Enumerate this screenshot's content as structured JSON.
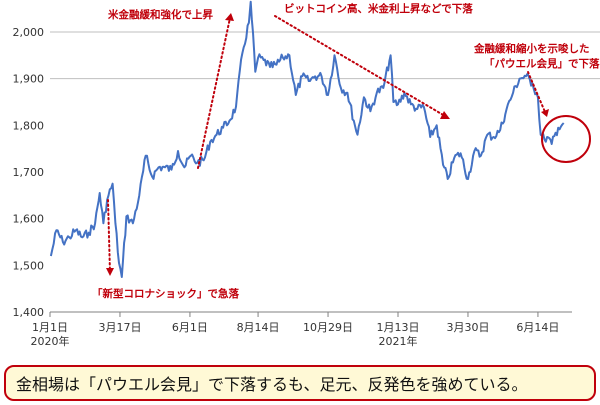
{
  "chart_data": {
    "type": "line",
    "xlabel": "",
    "ylabel": "",
    "ylim": [
      1400,
      2050
    ],
    "yticks": [
      "1,400",
      "1,500",
      "1,600",
      "1,700",
      "1,800",
      "1,900",
      "2,000"
    ],
    "xticks": [
      {
        "label": "1月1日",
        "sub": "2020年",
        "date": "2020-01-01"
      },
      {
        "label": "3月17日",
        "sub": "",
        "date": "2020-03-17"
      },
      {
        "label": "6月1日",
        "sub": "",
        "date": "2020-06-01"
      },
      {
        "label": "8月14日",
        "sub": "",
        "date": "2020-08-14"
      },
      {
        "label": "10月29日",
        "sub": "",
        "date": "2020-10-29"
      },
      {
        "label": "1月13日",
        "sub": "2021年",
        "date": "2021-01-13"
      },
      {
        "label": "3月30日",
        "sub": "",
        "date": "2021-03-30"
      },
      {
        "label": "6月14日",
        "sub": "",
        "date": "2021-06-14"
      }
    ],
    "grid": true,
    "series": [
      {
        "values": [
          [
            "2020-01-02",
            1520
          ],
          [
            "2020-01-08",
            1575
          ],
          [
            "2020-01-15",
            1550
          ],
          [
            "2020-01-22",
            1560
          ],
          [
            "2020-01-29",
            1575
          ],
          [
            "2020-02-05",
            1560
          ],
          [
            "2020-02-12",
            1570
          ],
          [
            "2020-02-19",
            1590
          ],
          [
            "2020-02-24",
            1655
          ],
          [
            "2020-02-28",
            1590
          ],
          [
            "2020-03-03",
            1640
          ],
          [
            "2020-03-09",
            1675
          ],
          [
            "2020-03-12",
            1590
          ],
          [
            "2020-03-16",
            1505
          ],
          [
            "2020-03-19",
            1475
          ],
          [
            "2020-03-24",
            1605
          ],
          [
            "2020-03-31",
            1590
          ],
          [
            "2020-04-07",
            1650
          ],
          [
            "2020-04-14",
            1735
          ],
          [
            "2020-04-21",
            1690
          ],
          [
            "2020-04-28",
            1710
          ],
          [
            "2020-05-05",
            1710
          ],
          [
            "2020-05-12",
            1705
          ],
          [
            "2020-05-19",
            1745
          ],
          [
            "2020-05-26",
            1710
          ],
          [
            "2020-06-02",
            1735
          ],
          [
            "2020-06-09",
            1720
          ],
          [
            "2020-06-16",
            1725
          ],
          [
            "2020-06-23",
            1765
          ],
          [
            "2020-06-30",
            1780
          ],
          [
            "2020-07-07",
            1795
          ],
          [
            "2020-07-14",
            1810
          ],
          [
            "2020-07-21",
            1840
          ],
          [
            "2020-07-28",
            1955
          ],
          [
            "2020-08-04",
            2020
          ],
          [
            "2020-08-06",
            2065
          ],
          [
            "2020-08-11",
            1915
          ],
          [
            "2020-08-14",
            1945
          ],
          [
            "2020-08-20",
            1940
          ],
          [
            "2020-08-27",
            1925
          ],
          [
            "2020-09-03",
            1930
          ],
          [
            "2020-09-10",
            1945
          ],
          [
            "2020-09-17",
            1950
          ],
          [
            "2020-09-24",
            1865
          ],
          [
            "2020-10-01",
            1905
          ],
          [
            "2020-10-08",
            1895
          ],
          [
            "2020-10-15",
            1905
          ],
          [
            "2020-10-22",
            1905
          ],
          [
            "2020-10-29",
            1865
          ],
          [
            "2020-11-05",
            1950
          ],
          [
            "2020-11-12",
            1880
          ],
          [
            "2020-11-19",
            1870
          ],
          [
            "2020-11-26",
            1810
          ],
          [
            "2020-11-30",
            1780
          ],
          [
            "2020-12-07",
            1860
          ],
          [
            "2020-12-14",
            1830
          ],
          [
            "2020-12-21",
            1870
          ],
          [
            "2020-12-28",
            1880
          ],
          [
            "2021-01-05",
            1950
          ],
          [
            "2021-01-08",
            1850
          ],
          [
            "2021-01-13",
            1845
          ],
          [
            "2021-01-20",
            1870
          ],
          [
            "2021-01-27",
            1845
          ],
          [
            "2021-02-03",
            1835
          ],
          [
            "2021-02-10",
            1840
          ],
          [
            "2021-02-17",
            1775
          ],
          [
            "2021-02-24",
            1800
          ],
          [
            "2021-03-03",
            1715
          ],
          [
            "2021-03-08",
            1685
          ],
          [
            "2021-03-15",
            1730
          ],
          [
            "2021-03-22",
            1740
          ],
          [
            "2021-03-30",
            1685
          ],
          [
            "2021-04-06",
            1745
          ],
          [
            "2021-04-13",
            1735
          ],
          [
            "2021-04-20",
            1780
          ],
          [
            "2021-04-27",
            1775
          ],
          [
            "2021-05-04",
            1790
          ],
          [
            "2021-05-11",
            1835
          ],
          [
            "2021-05-18",
            1870
          ],
          [
            "2021-05-25",
            1900
          ],
          [
            "2021-06-01",
            1905
          ],
          [
            "2021-06-08",
            1890
          ],
          [
            "2021-06-14",
            1860
          ],
          [
            "2021-06-17",
            1780
          ],
          [
            "2021-06-21",
            1770
          ],
          [
            "2021-06-24",
            1775
          ],
          [
            "2021-06-29",
            1760
          ],
          [
            "2021-07-06",
            1795
          ],
          [
            "2021-07-12",
            1805
          ]
        ]
      }
    ],
    "annotations": [
      {
        "text": "米金融緩和強化で上昇"
      },
      {
        "text": "ビットコイン高、米金利上昇などで下落"
      },
      {
        "text": "金融緩和縮小を示唆した"
      },
      {
        "text": "「パウエル会見」で下落"
      },
      {
        "text": "「新型コロナショック」で急落"
      }
    ],
    "colors": {
      "line": "#4472c4",
      "annotation": "#c0000b",
      "grid": "#bfbfbf",
      "caption_bg": "#fff9d6"
    }
  },
  "caption": "金相場は「パウエル会見」で下落するも、足元、反発色を強めている。"
}
